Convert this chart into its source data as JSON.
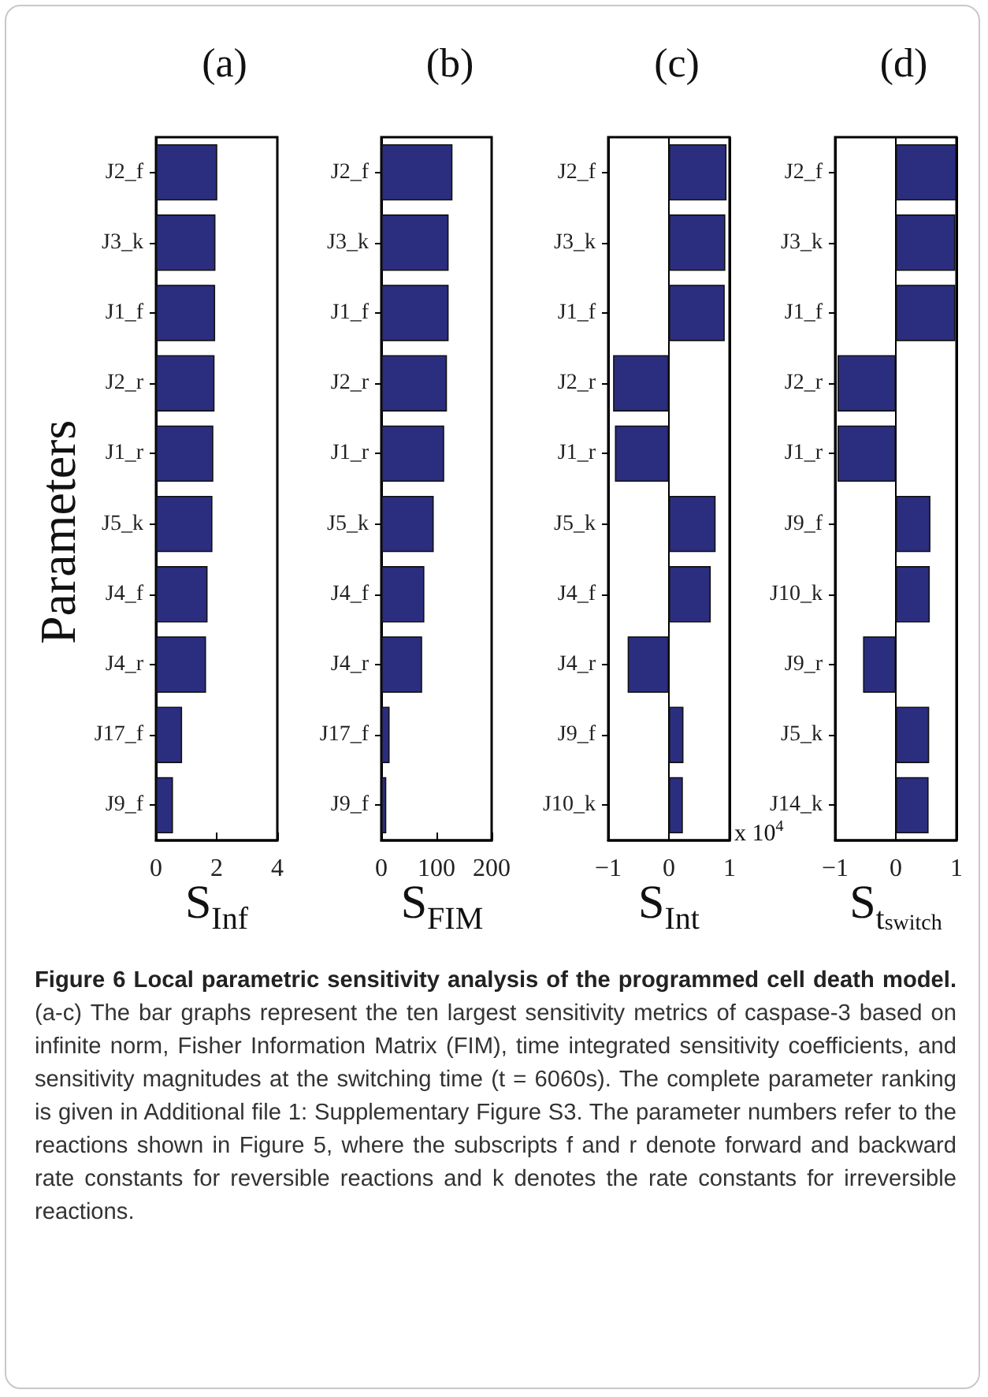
{
  "chart_data": [
    {
      "type": "bar",
      "orientation": "horizontal",
      "title": "(a)",
      "ylabel": "Parameters",
      "xlabel": "S$_{Inf}$",
      "categories": [
        "J2_f",
        "J3_k",
        "J1_f",
        "J2_r",
        "J1_r",
        "J5_k",
        "J4_f",
        "J4_r",
        "J17_f",
        "J9_f"
      ],
      "values": [
        2.02,
        1.96,
        1.95,
        1.93,
        1.89,
        1.86,
        1.7,
        1.65,
        0.86,
        0.56
      ],
      "color": "#2b2e7e",
      "xlim": [
        0,
        4
      ],
      "xticks": [
        0,
        2,
        4
      ],
      "grid": false,
      "annotations": [
        "Figure 6 Local parametric sensitivity analysis of the programmed cell death model.",
        "(a-c) The bar graphs represent the ten largest sensitivity metrics of caspase-3 based on infinite norm, Fisher Information Matrix (FIM), time integrated sensitivity coefficients, and sensitivity magnitudes at the switching time (t = 6060s). The complete parameter ranking is given in Additional file 1: Supplementary Figure S3. The parameter numbers refer to the reactions shown in Figure 5, where the subscripts f and r denote forward and backward rate constants for reversible reactions and k denotes the rate constants for irreversible reactions."
      ]
    },
    {
      "type": "bar",
      "orientation": "horizontal",
      "title": "(b)",
      "xlabel": "S$_{FIM}$",
      "categories": [
        "J2_f",
        "J3_k",
        "J1_f",
        "J2_r",
        "J1_r",
        "J5_k",
        "J4_f",
        "J4_r",
        "J17_f",
        "J9_f"
      ],
      "values": [
        129,
        122,
        122,
        119,
        114,
        95,
        78,
        74,
        15,
        9
      ],
      "color": "#2b2e7e",
      "xlim": [
        0,
        200
      ],
      "xticks": [
        0,
        100,
        200
      ],
      "grid": false
    },
    {
      "type": "bar",
      "orientation": "horizontal",
      "title": "(c)",
      "xlabel": "S$_{Int}$",
      "categories": [
        "J2_f",
        "J3_k",
        "J1_f",
        "J2_r",
        "J1_r",
        "J5_k",
        "J4_f",
        "J4_r",
        "J9_f",
        "J10_k"
      ],
      "values": [
        0.95,
        0.93,
        0.92,
        -0.92,
        -0.89,
        0.77,
        0.69,
        -0.68,
        0.24,
        0.23
      ],
      "color": "#2b2e7e",
      "xlim": [
        -1,
        1
      ],
      "xticks": [
        -1,
        0,
        1
      ],
      "grid": "x",
      "annotations": [
        "x 10$^{4}$"
      ]
    },
    {
      "type": "bar",
      "orientation": "horizontal",
      "title": "(d)",
      "xlabel": "S$_{t}$$_{switch}$",
      "categories": [
        "J2_f",
        "J3_k",
        "J1_f",
        "J2_r",
        "J1_r",
        "J9_f",
        "J10_k",
        "J9_r",
        "J5_k",
        "J14_k"
      ],
      "values": [
        1.0,
        0.98,
        0.98,
        -0.96,
        -0.96,
        0.57,
        0.56,
        -0.54,
        0.55,
        0.54
      ],
      "color": "#2b2e7e",
      "xlim": [
        -1,
        1
      ],
      "xticks": [
        -1,
        0,
        1
      ],
      "grid": "x"
    }
  ]
}
